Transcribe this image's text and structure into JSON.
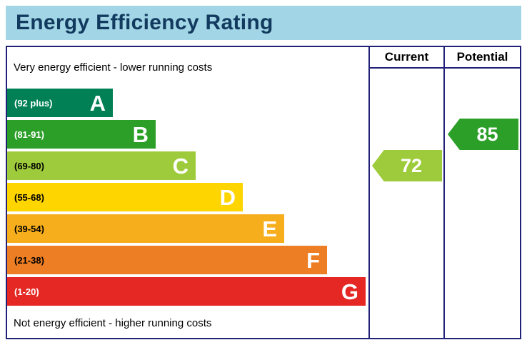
{
  "title": "Energy Efficiency Rating",
  "notes": {
    "top": "Very energy efficient - lower running costs",
    "bottom": "Not energy efficient - higher running costs"
  },
  "columns": [
    {
      "label": "Current"
    },
    {
      "label": "Potential"
    }
  ],
  "colors": {
    "title_bar_background": "#a2d5e5",
    "title_text": "#123a5f",
    "border": "#212178"
  },
  "chart_data": {
    "type": "bar",
    "title": "Energy Efficiency Rating",
    "bands": [
      {
        "letter": "A",
        "range": "(92 plus)",
        "min": 92,
        "color": "#008054"
      },
      {
        "letter": "B",
        "range": "(81-91)",
        "min": 81,
        "max": 91,
        "color": "#2c9f29"
      },
      {
        "letter": "C",
        "range": "(69-80)",
        "min": 69,
        "max": 80,
        "color": "#9ecb3b"
      },
      {
        "letter": "D",
        "range": "(55-68)",
        "min": 55,
        "max": 68,
        "color": "#ffd500"
      },
      {
        "letter": "E",
        "range": "(39-54)",
        "min": 39,
        "max": 54,
        "color": "#f7ae1d"
      },
      {
        "letter": "F",
        "range": "(21-38)",
        "min": 21,
        "max": 38,
        "color": "#ee7e23"
      },
      {
        "letter": "G",
        "range": "(1-20)",
        "min": 1,
        "max": 20,
        "color": "#e52823"
      }
    ],
    "current": {
      "value": "72",
      "band": "C",
      "color": "#9ecb3b"
    },
    "potential": {
      "value": "85",
      "band": "B",
      "color": "#2c9f29"
    }
  }
}
